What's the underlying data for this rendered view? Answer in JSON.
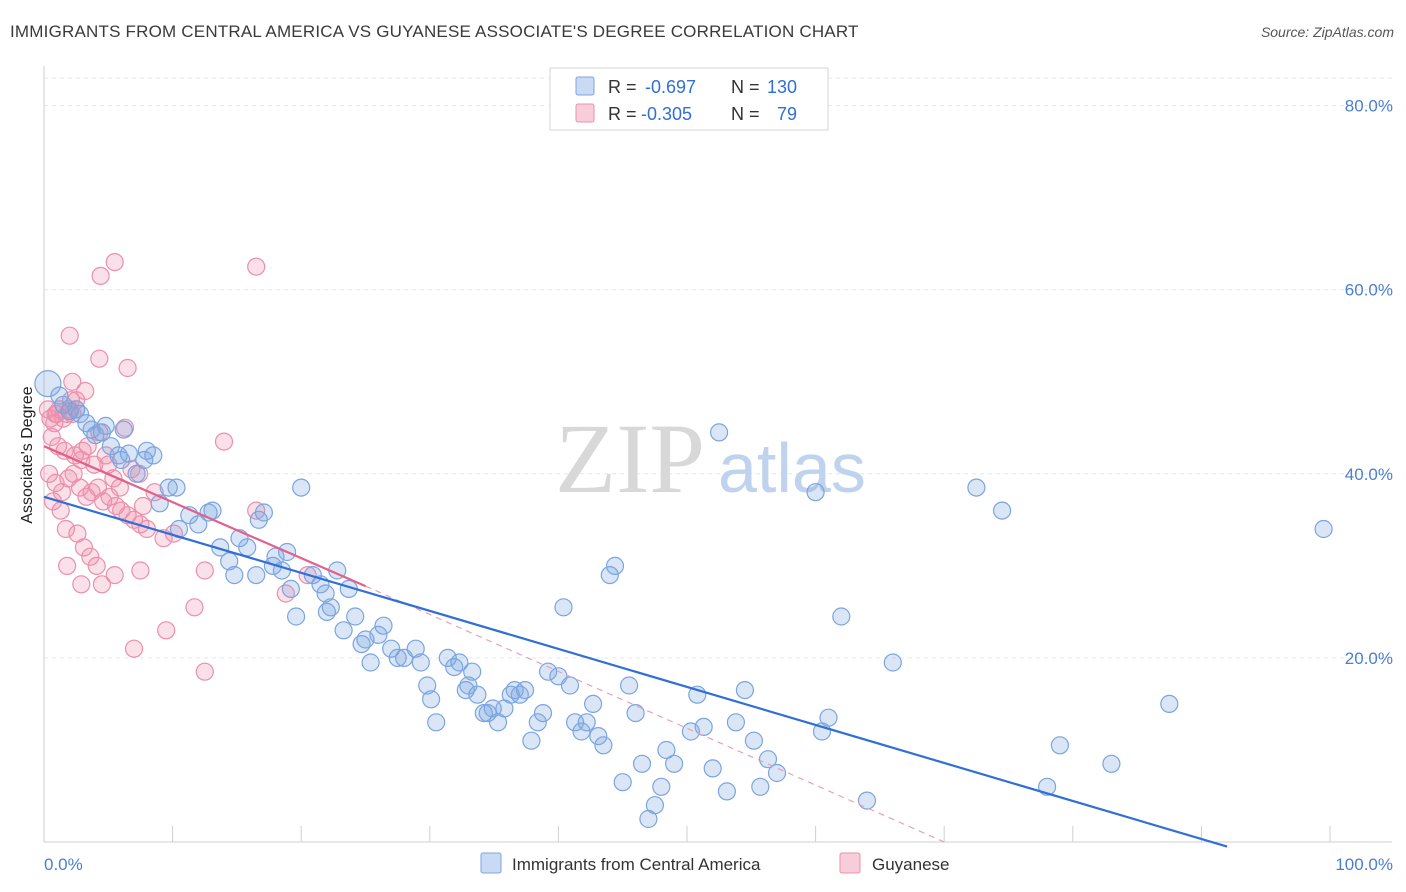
{
  "title": "IMMIGRANTS FROM CENTRAL AMERICA VS GUYANESE ASSOCIATE'S DEGREE CORRELATION CHART",
  "source": "Source: ZipAtlas.com",
  "watermark": {
    "zip": "ZIP",
    "atlas": "atlas"
  },
  "stats": [
    {
      "r_label": "R = ",
      "r": "-0.697",
      "n_label": "N = ",
      "n": "130",
      "color": "#7aa5e0"
    },
    {
      "r_label": "R = ",
      "r": "-0.305",
      "n_label": "N = ",
      "n": "79",
      "color": "#ec8fab"
    }
  ],
  "chart_data": {
    "type": "scatter",
    "title": "IMMIGRANTS FROM CENTRAL AMERICA VS GUYANESE ASSOCIATE'S DEGREE CORRELATION CHART",
    "xlabel": "",
    "ylabel": "Associate's Degree",
    "xlim": [
      0,
      100
    ],
    "ylim": [
      0,
      83
    ],
    "x_tick_labels": [
      "0.0%",
      "100.0%"
    ],
    "y_ticks": [
      20,
      40,
      60,
      80
    ],
    "y_tick_labels": [
      "20.0%",
      "40.0%",
      "60.0%",
      "80.0%"
    ],
    "grid": true,
    "legend_position": "bottom",
    "series": [
      {
        "name": "Immigrants from Central America",
        "color": "#7aa5e0",
        "line_color": "#2f6fd6",
        "trend": {
          "x": [
            0,
            92
          ],
          "y": [
            37.5,
            -0.5
          ]
        },
        "points": [
          [
            0.3,
            49.8
          ],
          [
            1.2,
            48.5
          ],
          [
            1.5,
            47.5
          ],
          [
            2.0,
            46.8
          ],
          [
            2.5,
            47.0
          ],
          [
            3.3,
            45.5
          ],
          [
            3.7,
            44.8
          ],
          [
            4.0,
            44.2
          ],
          [
            4.5,
            44.5
          ],
          [
            4.8,
            45.2
          ],
          [
            5.2,
            43.0
          ],
          [
            5.8,
            42.0
          ],
          [
            6.0,
            41.5
          ],
          [
            6.6,
            42.2
          ],
          [
            7.2,
            40.0
          ],
          [
            7.8,
            41.5
          ],
          [
            8.5,
            42.0
          ],
          [
            9.0,
            36.8
          ],
          [
            9.7,
            38.5
          ],
          [
            10.3,
            38.5
          ],
          [
            10.5,
            34.0
          ],
          [
            11.3,
            35.5
          ],
          [
            12.0,
            34.5
          ],
          [
            12.8,
            35.8
          ],
          [
            13.1,
            36.0
          ],
          [
            13.7,
            32.0
          ],
          [
            14.4,
            30.5
          ],
          [
            14.8,
            29.0
          ],
          [
            15.2,
            33.0
          ],
          [
            15.8,
            32.0
          ],
          [
            16.5,
            29.0
          ],
          [
            16.7,
            35.0
          ],
          [
            17.1,
            35.8
          ],
          [
            17.8,
            30.0
          ],
          [
            18.5,
            29.5
          ],
          [
            18.9,
            31.5
          ],
          [
            19.2,
            27.5
          ],
          [
            19.6,
            24.5
          ],
          [
            20.0,
            38.5
          ],
          [
            20.9,
            29.0
          ],
          [
            21.5,
            28.0
          ],
          [
            21.9,
            27.0
          ],
          [
            22.3,
            25.5
          ],
          [
            22.8,
            29.5
          ],
          [
            23.3,
            23.0
          ],
          [
            23.7,
            27.5
          ],
          [
            24.2,
            24.5
          ],
          [
            24.7,
            21.5
          ],
          [
            25.0,
            22.0
          ],
          [
            25.4,
            19.5
          ],
          [
            26.0,
            22.5
          ],
          [
            26.4,
            23.5
          ],
          [
            27.0,
            21.0
          ],
          [
            27.5,
            20.0
          ],
          [
            28.0,
            20.0
          ],
          [
            28.9,
            21.0
          ],
          [
            29.3,
            19.5
          ],
          [
            29.8,
            17.0
          ],
          [
            30.1,
            15.5
          ],
          [
            30.5,
            13.0
          ],
          [
            31.4,
            20.0
          ],
          [
            31.9,
            19.0
          ],
          [
            32.3,
            19.5
          ],
          [
            32.8,
            16.5
          ],
          [
            33.3,
            18.5
          ],
          [
            33.7,
            16.0
          ],
          [
            34.2,
            14.0
          ],
          [
            34.5,
            14.0
          ],
          [
            34.9,
            14.5
          ],
          [
            35.3,
            13.0
          ],
          [
            35.8,
            14.5
          ],
          [
            36.3,
            16.0
          ],
          [
            36.6,
            16.5
          ],
          [
            37.0,
            16.0
          ],
          [
            37.4,
            16.5
          ],
          [
            37.9,
            11.0
          ],
          [
            38.4,
            13.0
          ],
          [
            38.8,
            14.0
          ],
          [
            39.2,
            18.5
          ],
          [
            40.0,
            18.0
          ],
          [
            40.4,
            25.5
          ],
          [
            40.9,
            17.0
          ],
          [
            41.3,
            13.0
          ],
          [
            41.8,
            12.0
          ],
          [
            42.2,
            13.0
          ],
          [
            42.7,
            15.0
          ],
          [
            43.1,
            11.5
          ],
          [
            43.5,
            10.5
          ],
          [
            44.0,
            29.0
          ],
          [
            44.4,
            30.0
          ],
          [
            45.0,
            6.5
          ],
          [
            45.5,
            17.0
          ],
          [
            46.0,
            14.0
          ],
          [
            46.5,
            8.5
          ],
          [
            47.0,
            2.5
          ],
          [
            47.5,
            4.0
          ],
          [
            48.0,
            6.0
          ],
          [
            48.4,
            10.0
          ],
          [
            49.0,
            8.5
          ],
          [
            50.3,
            12.0
          ],
          [
            50.8,
            16.0
          ],
          [
            51.3,
            12.5
          ],
          [
            52.0,
            8.0
          ],
          [
            52.5,
            44.5
          ],
          [
            53.1,
            5.5
          ],
          [
            53.8,
            13.0
          ],
          [
            54.5,
            16.5
          ],
          [
            55.2,
            11.0
          ],
          [
            55.7,
            6.0
          ],
          [
            56.3,
            9.0
          ],
          [
            57.0,
            7.5
          ],
          [
            60.0,
            38.0
          ],
          [
            60.5,
            12.0
          ],
          [
            61.0,
            13.5
          ],
          [
            62.0,
            24.5
          ],
          [
            64.0,
            4.5
          ],
          [
            66.0,
            19.5
          ],
          [
            72.5,
            38.5
          ],
          [
            74.5,
            36.0
          ],
          [
            78.0,
            6.0
          ],
          [
            79.0,
            10.5
          ],
          [
            83.0,
            8.5
          ],
          [
            87.5,
            15.0
          ],
          [
            99.5,
            34.0
          ],
          [
            2.8,
            46.5
          ],
          [
            6.2,
            44.8
          ],
          [
            8.0,
            42.5
          ],
          [
            18.0,
            31.0
          ],
          [
            22.0,
            25.0
          ],
          [
            33.0,
            17.0
          ]
        ]
      },
      {
        "name": "Guyanese",
        "color": "#ec8fab",
        "line_color": "#e2608a",
        "trend": {
          "x": [
            0,
            25
          ],
          "y": [
            43.0,
            27.8
          ]
        },
        "dashed_extension": {
          "x": [
            25,
            70
          ],
          "y": [
            27.8,
            0
          ]
        },
        "points": [
          [
            0.3,
            47.0
          ],
          [
            0.5,
            46.0
          ],
          [
            0.8,
            45.5
          ],
          [
            1.0,
            46.5
          ],
          [
            1.2,
            47.0
          ],
          [
            1.5,
            46.0
          ],
          [
            1.8,
            46.5
          ],
          [
            2.0,
            47.0
          ],
          [
            2.2,
            46.5
          ],
          [
            2.5,
            47.0
          ],
          [
            0.6,
            44.0
          ],
          [
            1.1,
            43.0
          ],
          [
            1.6,
            42.5
          ],
          [
            2.4,
            42.0
          ],
          [
            2.9,
            41.5
          ],
          [
            3.4,
            43.0
          ],
          [
            3.9,
            41.0
          ],
          [
            0.4,
            40.0
          ],
          [
            0.9,
            39.0
          ],
          [
            1.4,
            38.0
          ],
          [
            1.9,
            39.5
          ],
          [
            2.3,
            40.0
          ],
          [
            2.8,
            38.5
          ],
          [
            3.3,
            37.5
          ],
          [
            3.7,
            38.0
          ],
          [
            4.2,
            38.5
          ],
          [
            4.6,
            37.0
          ],
          [
            5.1,
            37.5
          ],
          [
            5.6,
            36.5
          ],
          [
            6.0,
            36.0
          ],
          [
            6.5,
            35.5
          ],
          [
            7.0,
            35.0
          ],
          [
            7.5,
            34.5
          ],
          [
            8.0,
            34.0
          ],
          [
            0.7,
            37.0
          ],
          [
            1.3,
            36.0
          ],
          [
            1.7,
            34.0
          ],
          [
            2.6,
            33.5
          ],
          [
            3.1,
            32.0
          ],
          [
            3.6,
            31.0
          ],
          [
            4.1,
            30.0
          ],
          [
            1.8,
            30.0
          ],
          [
            2.9,
            28.0
          ],
          [
            4.5,
            28.0
          ],
          [
            5.5,
            29.0
          ],
          [
            7.0,
            21.0
          ],
          [
            9.5,
            23.0
          ],
          [
            12.5,
            18.5
          ],
          [
            14.0,
            43.5
          ],
          [
            16.5,
            36.0
          ],
          [
            18.8,
            27.0
          ],
          [
            20.5,
            29.0
          ],
          [
            16.5,
            62.5
          ],
          [
            5.5,
            63.0
          ],
          [
            4.4,
            61.5
          ],
          [
            2.0,
            55.0
          ],
          [
            4.3,
            52.5
          ],
          [
            6.5,
            51.5
          ],
          [
            2.2,
            50.0
          ],
          [
            3.2,
            49.0
          ],
          [
            2.5,
            48.0
          ],
          [
            4.3,
            44.5
          ],
          [
            6.3,
            45.0
          ],
          [
            7.4,
            40.0
          ],
          [
            8.6,
            38.0
          ],
          [
            10.1,
            33.5
          ],
          [
            12.5,
            29.5
          ],
          [
            7.5,
            29.5
          ],
          [
            5.0,
            41.0
          ],
          [
            4.8,
            42.0
          ],
          [
            5.4,
            39.5
          ],
          [
            5.9,
            38.5
          ],
          [
            7.7,
            36.5
          ],
          [
            11.7,
            25.5
          ],
          [
            9.3,
            33.0
          ],
          [
            2.1,
            48.0
          ],
          [
            0.9,
            46.5
          ],
          [
            3.0,
            42.5
          ],
          [
            6.8,
            40.5
          ]
        ]
      }
    ]
  }
}
